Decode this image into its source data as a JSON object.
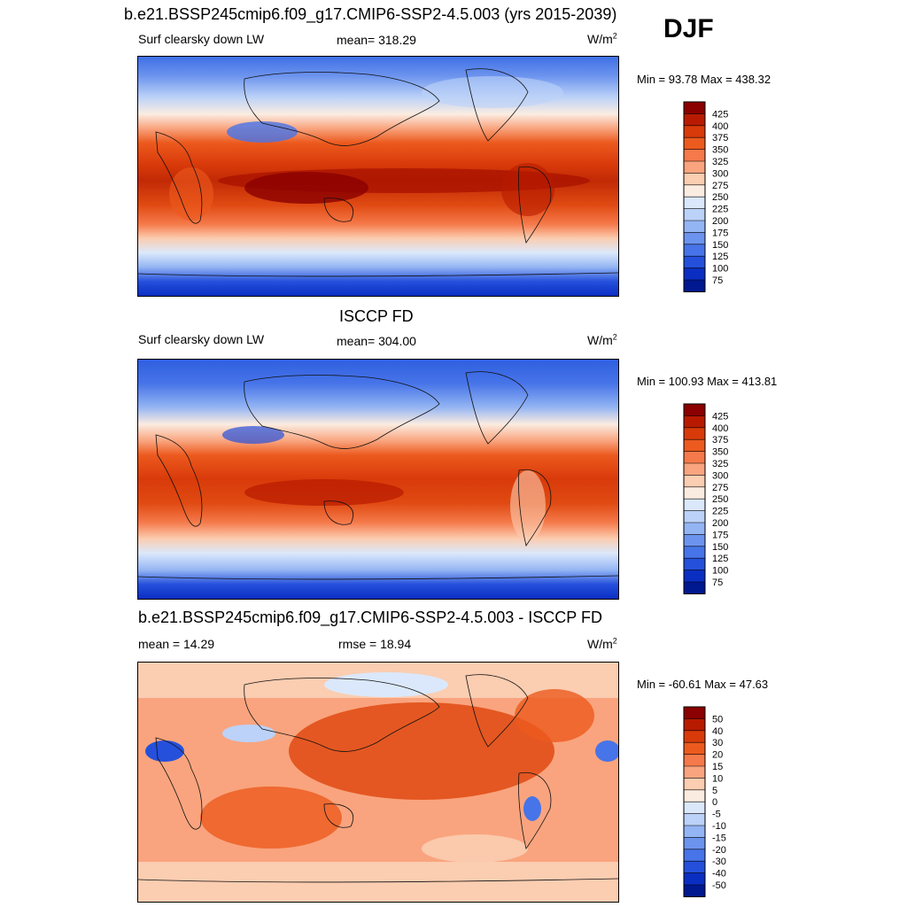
{
  "season": "DJF",
  "panels": [
    {
      "title": "b.e21.BSSP245cmip6.f09_g17.CMIP6-SSP2-4.5.003 (yrs 2015-2039)",
      "left": "Surf clearsky down LW",
      "center": "mean= 318.29",
      "unit": "W/m",
      "unit_exp": "2",
      "minmax": "Min =  93.78 Max = 438.32"
    },
    {
      "title": "ISCCP FD",
      "left": "Surf clearsky down LW",
      "center": "mean= 304.00",
      "unit": "W/m",
      "unit_exp": "2",
      "minmax": "Min = 100.93 Max = 413.81"
    },
    {
      "title": "b.e21.BSSP245cmip6.f09_g17.CMIP6-SSP2-4.5.003 - ISCCP FD",
      "left": "mean =  14.29",
      "center": "rmse =  18.94",
      "unit": "W/m",
      "unit_exp": "2",
      "minmax": "Min = -60.61 Max =  47.63"
    }
  ],
  "colorbars": [
    {
      "labels": [
        "425",
        "400",
        "375",
        "350",
        "325",
        "300",
        "275",
        "250",
        "225",
        "200",
        "175",
        "150",
        "125",
        "100",
        "75"
      ],
      "colors": [
        "#8b0000",
        "#b81a00",
        "#d93a0a",
        "#ec5a1e",
        "#f5794a",
        "#f9a47e",
        "#fbcdb1",
        "#fbece1",
        "#dbe8fb",
        "#bcd2f8",
        "#94b5f3",
        "#6c94ee",
        "#4774e8",
        "#2550dc",
        "#0a2ec2",
        "#001890"
      ]
    },
    {
      "labels": [
        "425",
        "400",
        "375",
        "350",
        "325",
        "300",
        "275",
        "250",
        "225",
        "200",
        "175",
        "150",
        "125",
        "100",
        "75"
      ],
      "colors": [
        "#8b0000",
        "#b81a00",
        "#d93a0a",
        "#ec5a1e",
        "#f5794a",
        "#f9a47e",
        "#fbcdb1",
        "#fbece1",
        "#dbe8fb",
        "#bcd2f8",
        "#94b5f3",
        "#6c94ee",
        "#4774e8",
        "#2550dc",
        "#0a2ec2",
        "#001890"
      ]
    },
    {
      "labels": [
        "50",
        "40",
        "30",
        "20",
        "15",
        "10",
        "5",
        "0",
        "-5",
        "-10",
        "-15",
        "-20",
        "-30",
        "-40",
        "-50"
      ],
      "colors": [
        "#8b0000",
        "#b81a00",
        "#d93a0a",
        "#ec5a1e",
        "#f5794a",
        "#f9a47e",
        "#fbcdb1",
        "#fbece1",
        "#dbe8fb",
        "#bcd2f8",
        "#94b5f3",
        "#6c94ee",
        "#4774e8",
        "#2550dc",
        "#0a2ec2",
        "#001890"
      ]
    }
  ]
}
